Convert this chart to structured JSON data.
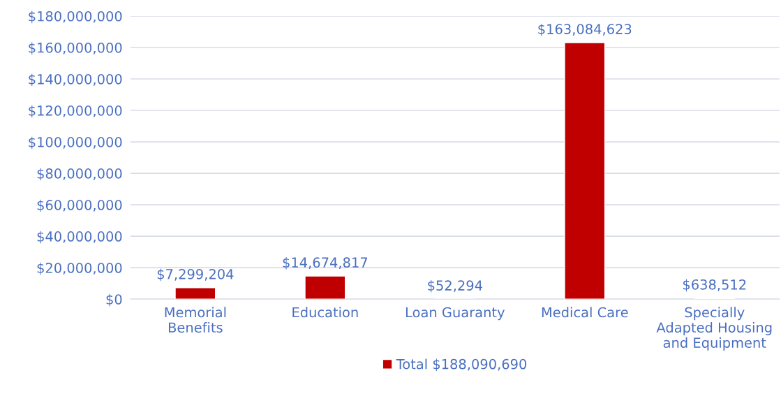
{
  "chart_data": {
    "type": "bar",
    "categories": [
      "Memorial Benefits",
      "Education",
      "Loan Guaranty",
      "Medical Care",
      "Specially Adapted Housing and Equipment"
    ],
    "series": [
      {
        "name": "Total $188,090,690",
        "color": "#c00000",
        "values": [
          7299204,
          14674817,
          52294,
          163084623,
          638512
        ],
        "value_labels": [
          "$7,299,204",
          "$14,674,817",
          "$52,294",
          "$163,084,623",
          "$638,512"
        ]
      }
    ],
    "ylim": [
      0,
      180000000
    ],
    "yticks": [
      {
        "value": 0,
        "label": "$0"
      },
      {
        "value": 20000000,
        "label": "$20,000,000"
      },
      {
        "value": 40000000,
        "label": "$40,000,000"
      },
      {
        "value": 60000000,
        "label": "$60,000,000"
      },
      {
        "value": 80000000,
        "label": "$80,000,000"
      },
      {
        "value": 100000000,
        "label": "$100,000,000"
      },
      {
        "value": 120000000,
        "label": "$120,000,000"
      },
      {
        "value": 140000000,
        "label": "$140,000,000"
      },
      {
        "value": 160000000,
        "label": "$160,000,000"
      },
      {
        "value": 180000000,
        "label": "$180,000,000"
      }
    ],
    "grid": "y",
    "legend": "bottom"
  }
}
